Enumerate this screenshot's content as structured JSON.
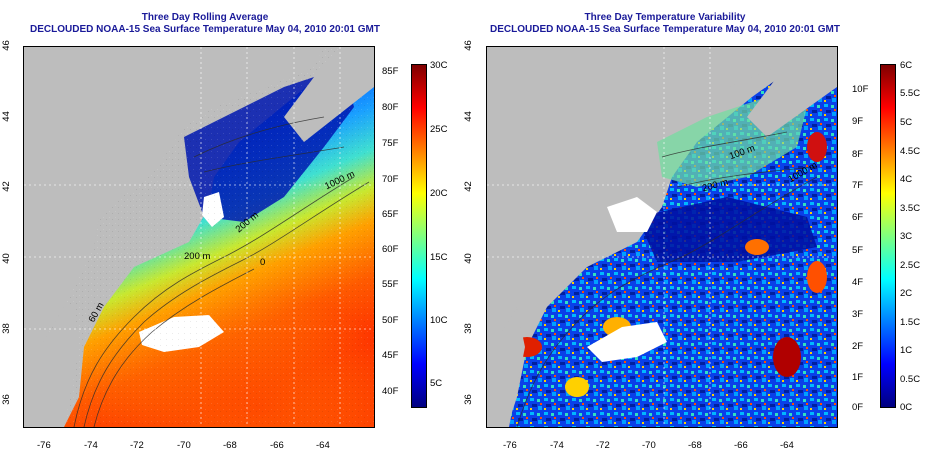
{
  "panels": [
    {
      "id": "left",
      "title": "Three Day Rolling Average",
      "subtitle": "DECLOUDED NOAA-15 Sea Surface Temperature May 04, 2010 20:01 GMT",
      "x_ticks": [
        "-76",
        "-74",
        "-72",
        "-70",
        "-68",
        "-66",
        "-64"
      ],
      "y_ticks": [
        "46",
        "44",
        "42",
        "40",
        "38",
        "36"
      ],
      "contour_labels": [
        "1000 m",
        "200 m",
        "200 m",
        "60 m",
        "0"
      ],
      "colorbar": {
        "left_labels": [
          "85F",
          "80F",
          "75F",
          "70F",
          "65F",
          "60F",
          "55F",
          "50F",
          "45F",
          "40F"
        ],
        "right_labels": [
          "30C",
          "25C",
          "20C",
          "15C",
          "10C",
          "5C"
        ],
        "colors": [
          "#00007f",
          "#0000ff",
          "#007fff",
          "#00ffff",
          "#7fff7f",
          "#ffff00",
          "#ff7f00",
          "#ff0000",
          "#7f0000"
        ]
      }
    },
    {
      "id": "right",
      "title": "Three Day Temperature Variability",
      "subtitle": "DECLOUDED NOAA-15 Sea Surface Temperature May 04, 2010 20:01 GMT",
      "x_ticks": [
        "-76",
        "-74",
        "-72",
        "-70",
        "-68",
        "-66",
        "-64"
      ],
      "y_ticks": [
        "46",
        "44",
        "42",
        "40",
        "38",
        "36"
      ],
      "contour_labels": [
        "100 m",
        "200 m",
        "1000 m"
      ],
      "colorbar": {
        "left_labels": [
          "10F",
          "9F",
          "8F",
          "7F",
          "6F",
          "5F",
          "4F",
          "3F",
          "2F",
          "1F",
          "0F"
        ],
        "right_labels": [
          "6C",
          "5.5C",
          "5C",
          "4.5C",
          "4C",
          "3.5C",
          "3C",
          "2.5C",
          "2C",
          "1.5C",
          "1C",
          "0.5C",
          "0C"
        ],
        "colors": [
          "#00007f",
          "#0000ff",
          "#007fff",
          "#00ffff",
          "#7fff7f",
          "#ffff00",
          "#ff7f00",
          "#ff0000",
          "#7f0000"
        ]
      }
    }
  ]
}
